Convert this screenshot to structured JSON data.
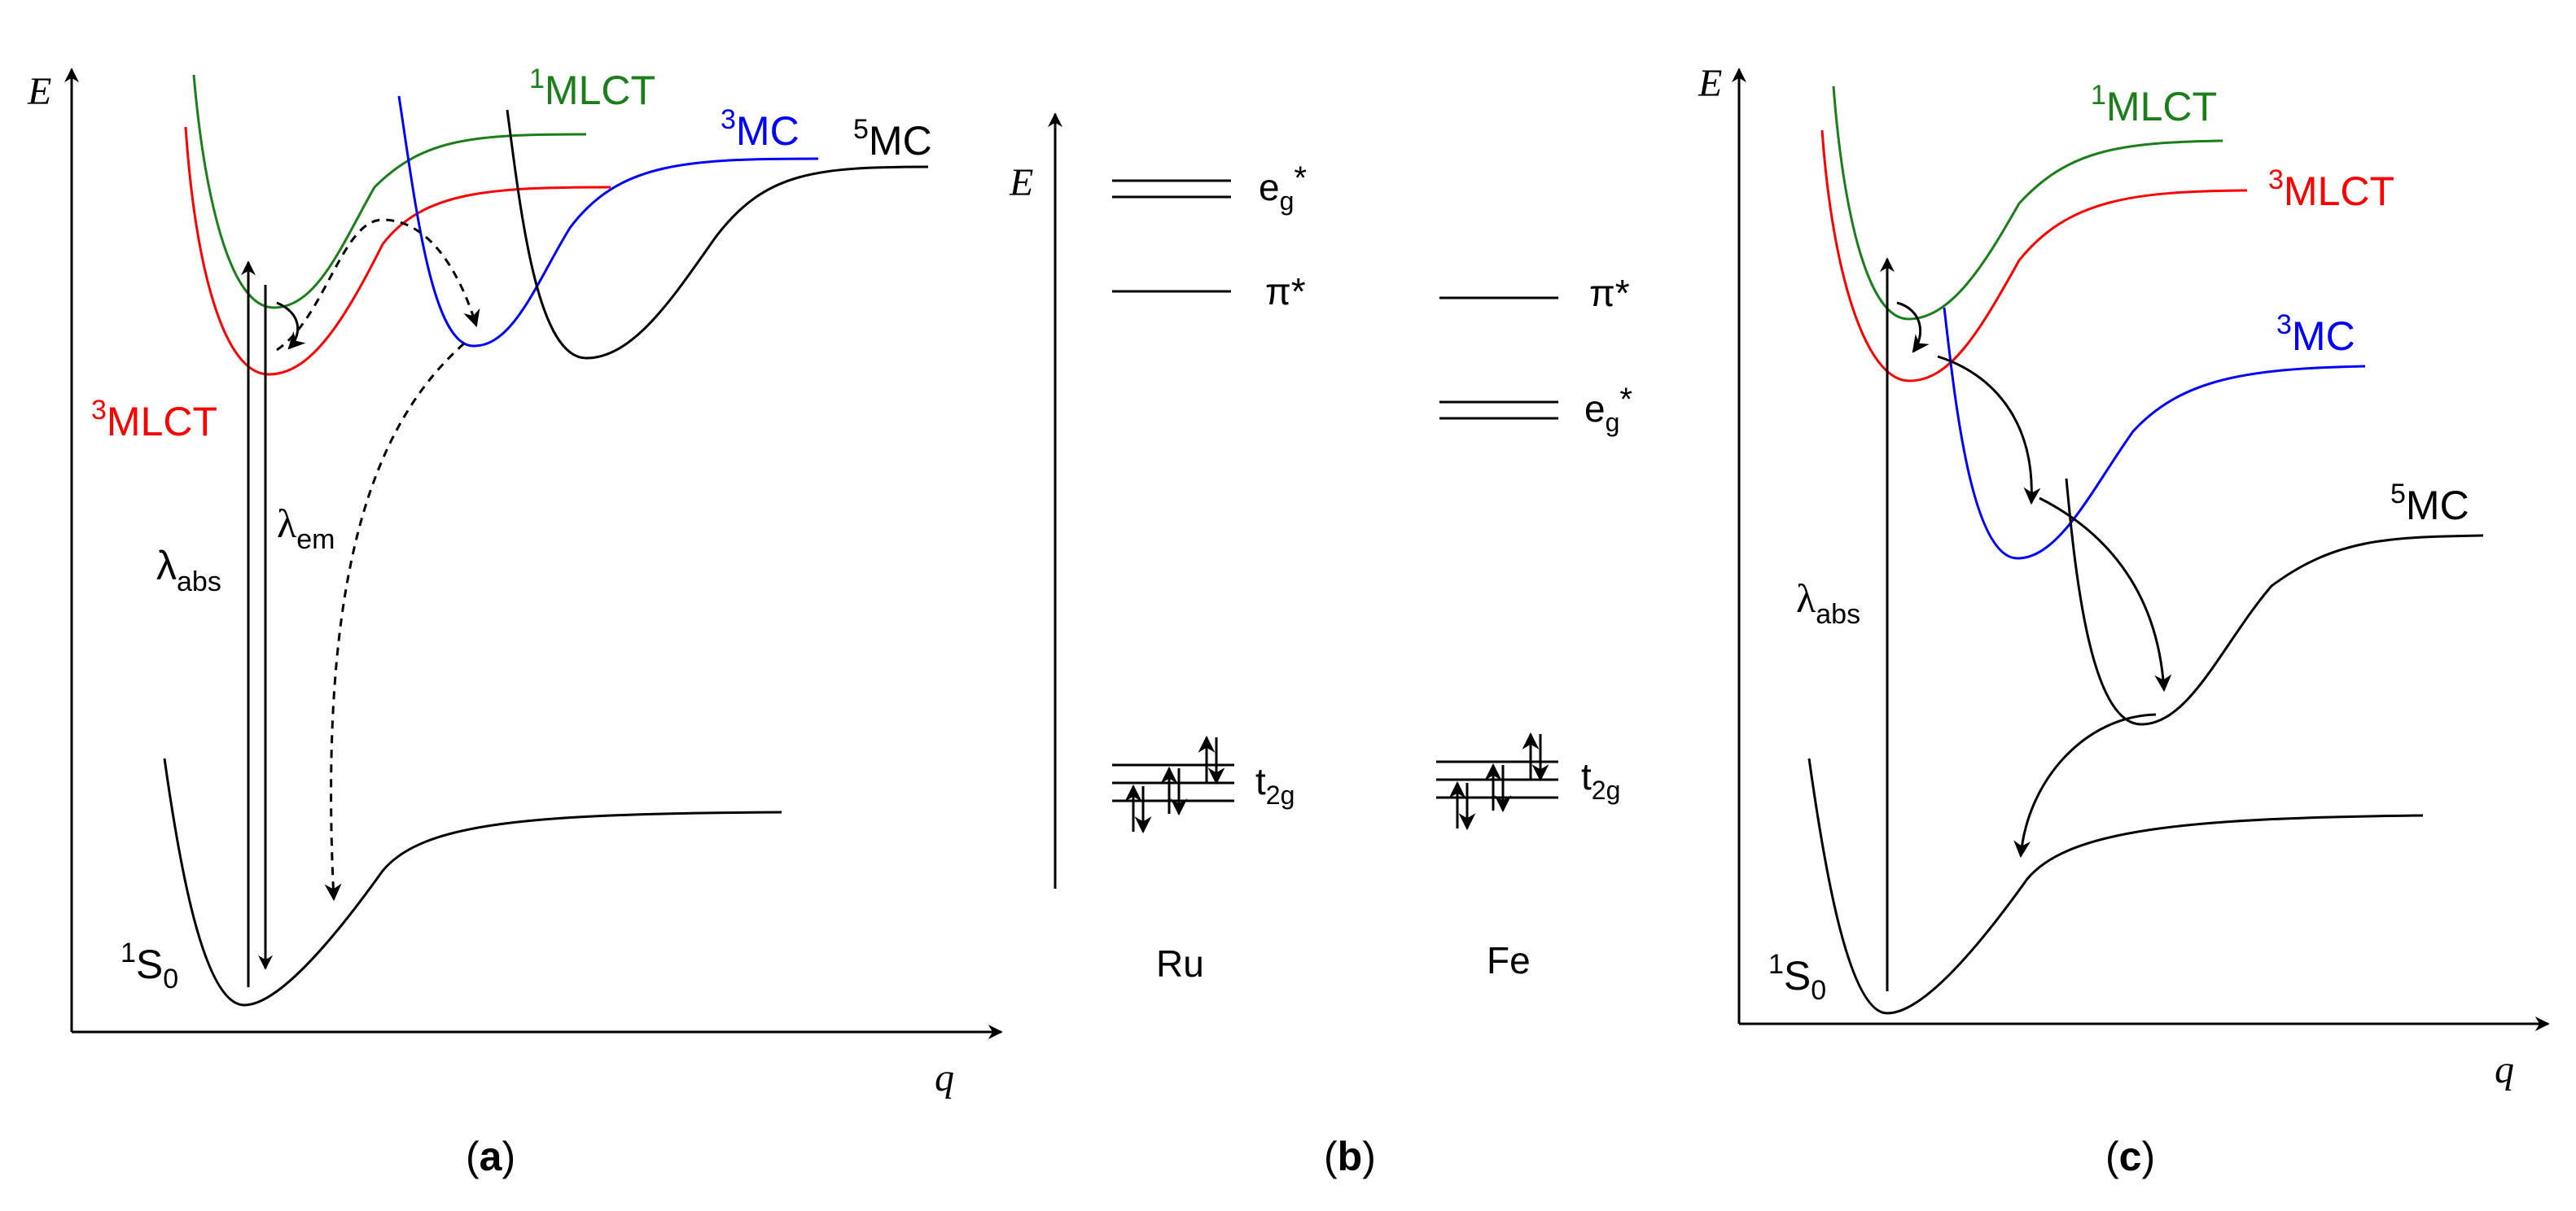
{
  "colors": {
    "ground": "#000000",
    "singlet_mlct": "#1a7f1a",
    "triplet_mlct": "#ff0000",
    "triplet_mc": "#0000ff",
    "quintet_mc": "#000000"
  },
  "panel_a": {
    "axis_e": "E",
    "axis_q": "q",
    "state_1mlct": {
      "sup": "1",
      "base": "MLCT"
    },
    "state_3mlct": {
      "sup": "3",
      "base": "MLCT"
    },
    "state_3mc": {
      "sup": "3",
      "base": "MC"
    },
    "state_5mc": {
      "sup": "5",
      "base": "MC"
    },
    "state_ground": {
      "sup": "1",
      "base": "S",
      "sub": "0"
    },
    "lambda_abs": {
      "symbol": "λ",
      "sub": "abs"
    },
    "lambda_em": {
      "symbol": "λ",
      "sub": "em"
    },
    "caption": {
      "open": "(",
      "letter": "a",
      "close": ")"
    }
  },
  "panel_b": {
    "axis_e": "E",
    "ru": {
      "name": "Ru",
      "eg_star": {
        "base": "e",
        "sub": "g",
        "sup": "*"
      },
      "pi_star": "π*",
      "t2g": {
        "base": "t",
        "sub": "2g"
      }
    },
    "fe": {
      "name": "Fe",
      "eg_star": {
        "base": "e",
        "sub": "g",
        "sup": "*"
      },
      "pi_star": "π*",
      "t2g": {
        "base": "t",
        "sub": "2g"
      }
    },
    "caption": {
      "open": "(",
      "letter": "b",
      "close": ")"
    }
  },
  "panel_c": {
    "axis_e": "E",
    "axis_q": "q",
    "state_1mlct": {
      "sup": "1",
      "base": "MLCT"
    },
    "state_3mlct": {
      "sup": "3",
      "base": "MLCT"
    },
    "state_3mc": {
      "sup": "3",
      "base": "MC"
    },
    "state_5mc": {
      "sup": "5",
      "base": "MC"
    },
    "state_ground": {
      "sup": "1",
      "base": "S",
      "sub": "0"
    },
    "lambda_abs": {
      "symbol": "λ",
      "sub": "abs"
    },
    "caption": {
      "open": "(",
      "letter": "c",
      "close": ")"
    }
  }
}
